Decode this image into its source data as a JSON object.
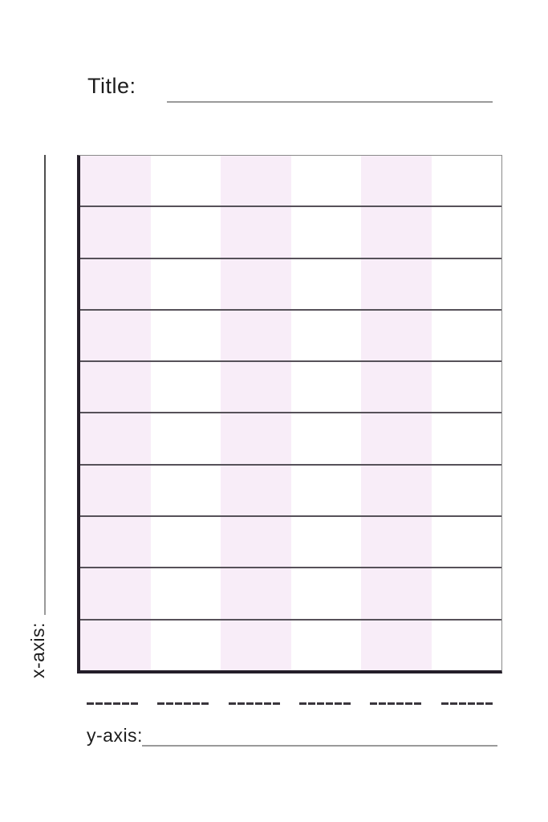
{
  "title": {
    "label": "Title:"
  },
  "axes": {
    "x": {
      "label": "x-axis:"
    },
    "y": {
      "label": "y-axis:"
    }
  },
  "grid": {
    "rows": 10,
    "columns": 6,
    "striped_columns": [
      0,
      2,
      4
    ]
  },
  "category_placeholders": {
    "group_count": 6,
    "dashes_per_group": 6
  },
  "colors": {
    "background": "#ffffff",
    "text": "#1c1c1c",
    "stripe": "#f8edf8",
    "grid_line": "#565159",
    "axis_border": "#241e29",
    "thin_border": "#8a8a8a",
    "write_line": "#9a9a9a",
    "dash": "#3a363d"
  }
}
